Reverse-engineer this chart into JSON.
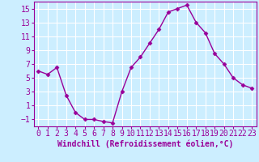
{
  "x": [
    0,
    1,
    2,
    3,
    4,
    5,
    6,
    7,
    8,
    9,
    10,
    11,
    12,
    13,
    14,
    15,
    16,
    17,
    18,
    19,
    20,
    21,
    22,
    23
  ],
  "y": [
    6.0,
    5.5,
    6.5,
    2.5,
    0.0,
    -1.0,
    -1.0,
    -1.3,
    -1.5,
    3.0,
    6.5,
    8.0,
    10.0,
    12.0,
    14.5,
    15.0,
    15.5,
    13.0,
    11.5,
    8.5,
    7.0,
    5.0,
    4.0,
    3.5
  ],
  "xlabel": "Windchill (Refroidissement éolien,°C)",
  "ylim": [
    -2,
    16
  ],
  "xlim": [
    -0.5,
    23.5
  ],
  "yticks": [
    -1,
    1,
    3,
    5,
    7,
    9,
    11,
    13,
    15
  ],
  "xticks": [
    0,
    1,
    2,
    3,
    4,
    5,
    6,
    7,
    8,
    9,
    10,
    11,
    12,
    13,
    14,
    15,
    16,
    17,
    18,
    19,
    20,
    21,
    22,
    23
  ],
  "line_color": "#990099",
  "marker": "D",
  "marker_size": 2.5,
  "bg_color": "#cceeff",
  "grid_color": "#ffffff",
  "xlabel_color": "#990099",
  "tick_color": "#990099",
  "axis_label_fontsize": 7,
  "tick_fontsize": 7
}
